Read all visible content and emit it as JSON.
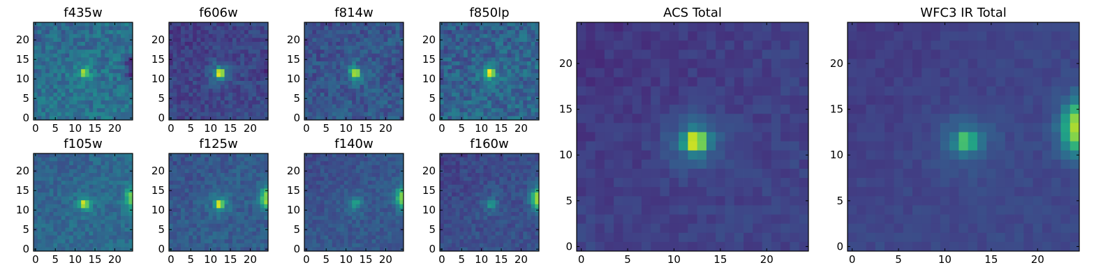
{
  "chart_data": [
    {
      "type": "heatmap",
      "title": "f435w",
      "source_peak": 0.95,
      "source_core": 0.55,
      "edge_source": 0.05,
      "background": 0.38,
      "noise": 0.1,
      "xticks": [
        "0",
        "5",
        "10",
        "15",
        "20"
      ],
      "yticks": [
        "0",
        "5",
        "10",
        "15",
        "20"
      ],
      "grid_size": 25
    },
    {
      "type": "heatmap",
      "title": "f606w",
      "source_peak": 0.95,
      "source_core": 0.55,
      "edge_source": 0.1,
      "background": 0.22,
      "noise": 0.07,
      "xticks": [
        "0",
        "5",
        "10",
        "15",
        "20"
      ],
      "yticks": [
        "0",
        "5",
        "10",
        "15",
        "20"
      ],
      "grid_size": 25
    },
    {
      "type": "heatmap",
      "title": "f814w",
      "source_peak": 0.95,
      "source_core": 0.55,
      "edge_source": 0.15,
      "background": 0.28,
      "noise": 0.09,
      "xticks": [
        "0",
        "5",
        "10",
        "15",
        "20"
      ],
      "yticks": [
        "0",
        "5",
        "10",
        "15",
        "20"
      ],
      "grid_size": 25
    },
    {
      "type": "heatmap",
      "title": "f850lp",
      "source_peak": 0.95,
      "source_core": 0.55,
      "edge_source": 0.35,
      "background": 0.33,
      "noise": 0.11,
      "xticks": [
        "0",
        "5",
        "10",
        "15",
        "20"
      ],
      "yticks": [
        "0",
        "5",
        "10",
        "15",
        "20"
      ],
      "grid_size": 25
    },
    {
      "type": "heatmap",
      "title": "f105w",
      "source_peak": 0.95,
      "source_core": 0.55,
      "edge_source": 0.85,
      "background": 0.35,
      "noise": 0.07,
      "xticks": [
        "0",
        "5",
        "10",
        "15",
        "20"
      ],
      "yticks": [
        "0",
        "5",
        "10",
        "15",
        "20"
      ],
      "grid_size": 25
    },
    {
      "type": "heatmap",
      "title": "f125w",
      "source_peak": 0.95,
      "source_core": 0.55,
      "edge_source": 0.9,
      "background": 0.3,
      "noise": 0.07,
      "xticks": [
        "0",
        "5",
        "10",
        "15",
        "20"
      ],
      "yticks": [
        "0",
        "5",
        "10",
        "15",
        "20"
      ],
      "grid_size": 25
    },
    {
      "type": "heatmap",
      "title": "f140w",
      "source_peak": 0.55,
      "source_core": 0.45,
      "edge_source": 0.9,
      "background": 0.28,
      "noise": 0.06,
      "xticks": [
        "0",
        "5",
        "10",
        "15",
        "20"
      ],
      "yticks": [
        "0",
        "5",
        "10",
        "15",
        "20"
      ],
      "grid_size": 25
    },
    {
      "type": "heatmap",
      "title": "f160w",
      "source_peak": 0.5,
      "source_core": 0.4,
      "edge_source": 0.95,
      "background": 0.25,
      "noise": 0.06,
      "xticks": [
        "0",
        "5",
        "10",
        "15",
        "20"
      ],
      "yticks": [
        "0",
        "5",
        "10",
        "15",
        "20"
      ],
      "grid_size": 25
    },
    {
      "type": "heatmap",
      "title": "ACS Total",
      "source_peak": 0.95,
      "source_core": 0.55,
      "edge_source": 0.2,
      "background": 0.2,
      "noise": 0.04,
      "xticks": [
        "0",
        "5",
        "10",
        "15",
        "20"
      ],
      "yticks": [
        "0",
        "5",
        "10",
        "15",
        "20"
      ],
      "grid_size": 25
    },
    {
      "type": "heatmap",
      "title": "WFC3 IR Total",
      "source_peak": 0.65,
      "source_core": 0.5,
      "edge_source": 0.95,
      "background": 0.22,
      "noise": 0.03,
      "xticks": [
        "0",
        "5",
        "10",
        "15",
        "20"
      ],
      "yticks": [
        "0",
        "5",
        "10",
        "15",
        "20"
      ],
      "grid_size": 25
    }
  ],
  "colormap": "viridis"
}
